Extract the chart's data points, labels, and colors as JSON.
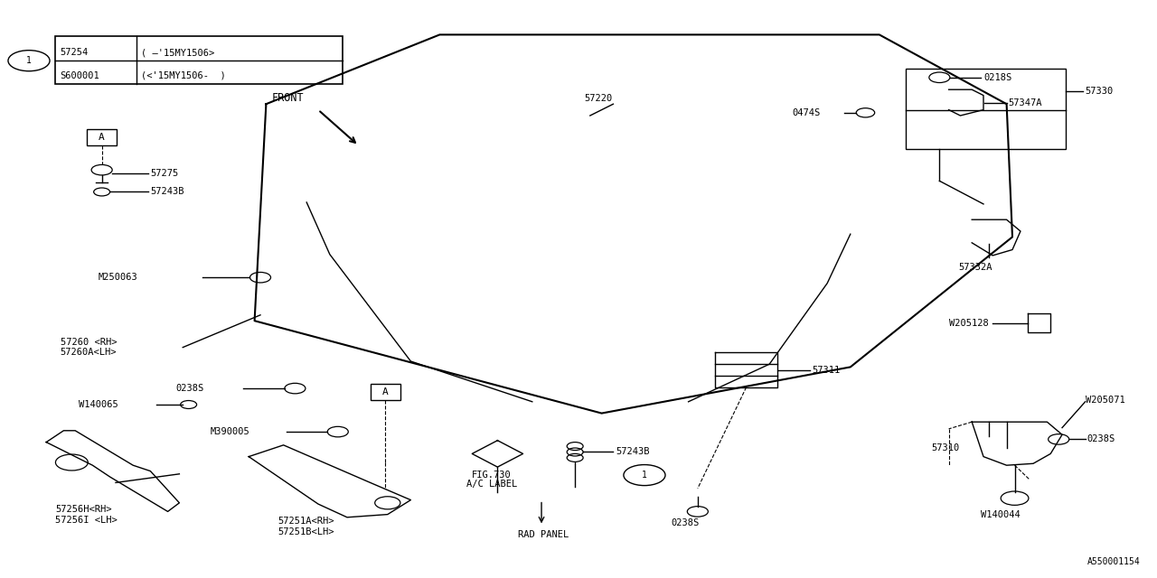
{
  "bg_color": "#ffffff",
  "line_color": "#000000",
  "fig_id": "A550001154",
  "table_rows": [
    {
      "part": "57254",
      "note": "( –'15MY1506>"
    },
    {
      "part": "S600001",
      "note": "(<'15MY1506-  )"
    }
  ]
}
